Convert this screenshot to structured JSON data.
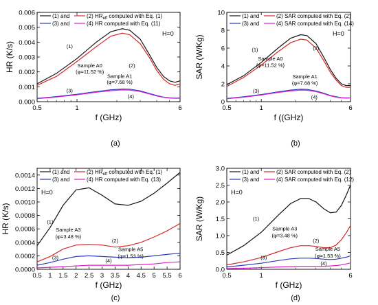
{
  "colors": {
    "s1": "#111111",
    "s2": "#d62728",
    "s3": "#2a3bbd",
    "s4": "#e020c8"
  },
  "chart_data": [
    {
      "type": "line",
      "panel_label": "(a)",
      "xlabel": "f (GHz)",
      "ylabel": "HR (K/s)",
      "xscale": "log",
      "xlim": [
        0.5,
        6
      ],
      "ylim": [
        0,
        0.006
      ],
      "xticks": [
        {
          "v": 0.5,
          "label": "0.5"
        },
        {
          "v": 1,
          "label": "1"
        },
        {
          "v": 6,
          "label": "6"
        }
      ],
      "yticks": [
        {
          "v": 0,
          "label": "0.000"
        },
        {
          "v": 0.001,
          "label": "0.001"
        },
        {
          "v": 0.002,
          "label": "0.002"
        },
        {
          "v": 0.003,
          "label": "0.003"
        },
        {
          "v": 0.004,
          "label": "0.004"
        },
        {
          "v": 0.005,
          "label": "0.005"
        },
        {
          "v": 0.006,
          "label": "0.006"
        }
      ],
      "legend": [
        {
          "line1": "(1) and",
          "line2": "(2) HR",
          "sub": "eff",
          "rest": " computed with Eq. (1)"
        },
        {
          "line1": "(3) and",
          "line2": "(4) HR computed with Eq. (11)",
          "sub": "",
          "rest": ""
        }
      ],
      "h_label": "H=0",
      "annotations": [
        {
          "text": "(1)",
          "x": 0.88,
          "y": 0.0036
        },
        {
          "text": "(2)",
          "x": 2.6,
          "y": 0.0023
        },
        {
          "text": "(3)",
          "x": 0.88,
          "y": 0.00062
        },
        {
          "text": "(4)",
          "x": 2.55,
          "y": 0.00022
        },
        {
          "text": "Sample A0",
          "x": 1.25,
          "y": 0.0023
        },
        {
          "text": "(φ=11.52 %)",
          "x": 1.25,
          "y": 0.0019
        },
        {
          "text": "Sample A1",
          "x": 2.1,
          "y": 0.0016
        },
        {
          "text": "(φ=7.68 %)",
          "x": 2.1,
          "y": 0.0012
        }
      ],
      "series": [
        {
          "key": "s1",
          "x": [
            0.5,
            0.7,
            1.0,
            1.4,
            1.8,
            2.2,
            2.5,
            3.0,
            3.5,
            4.0,
            4.5,
            5.0,
            5.5,
            6.0
          ],
          "y": [
            0.0012,
            0.0019,
            0.0029,
            0.004,
            0.0047,
            0.0049,
            0.0048,
            0.0042,
            0.0032,
            0.0023,
            0.0017,
            0.0014,
            0.0013,
            0.0014
          ]
        },
        {
          "key": "s2",
          "x": [
            0.5,
            0.7,
            1.0,
            1.4,
            1.8,
            2.2,
            2.5,
            3.0,
            3.5,
            4.0,
            4.5,
            5.0,
            5.5,
            6.0
          ],
          "y": [
            0.0011,
            0.0017,
            0.0027,
            0.0037,
            0.0044,
            0.0046,
            0.0045,
            0.0039,
            0.003,
            0.0021,
            0.0015,
            0.0012,
            0.0011,
            0.0012
          ]
        },
        {
          "key": "s3",
          "x": [
            0.5,
            0.7,
            1.0,
            1.4,
            1.8,
            2.2,
            2.5,
            3.0,
            3.5,
            4.0,
            4.5,
            5.0,
            5.5,
            6.0
          ],
          "y": [
            0.00022,
            0.00034,
            0.0005,
            0.00068,
            0.0008,
            0.00085,
            0.00084,
            0.00073,
            0.00056,
            0.00041,
            0.00031,
            0.00026,
            0.00024,
            0.00025
          ]
        },
        {
          "key": "s4",
          "x": [
            0.5,
            0.7,
            1.0,
            1.4,
            1.8,
            2.2,
            2.5,
            3.0,
            3.5,
            4.0,
            4.5,
            5.0,
            5.5,
            6.0
          ],
          "y": [
            0.0002,
            0.00031,
            0.00046,
            0.00063,
            0.00074,
            0.00079,
            0.00078,
            0.00068,
            0.00052,
            0.00038,
            0.00029,
            0.00024,
            0.00022,
            0.00023
          ]
        }
      ]
    },
    {
      "type": "line",
      "panel_label": "(b)",
      "xlabel": "f ((GHz)",
      "ylabel": "SAR (W/Kg)",
      "xscale": "log",
      "xlim": [
        0.5,
        6
      ],
      "ylim": [
        0,
        10
      ],
      "xticks": [
        {
          "v": 0.5,
          "label": "0.5"
        },
        {
          "v": 1,
          "label": "1"
        },
        {
          "v": 6,
          "label": "6"
        }
      ],
      "yticks": [
        {
          "v": 0,
          "label": "0"
        },
        {
          "v": 2,
          "label": "2"
        },
        {
          "v": 4,
          "label": "4"
        },
        {
          "v": 6,
          "label": "6"
        },
        {
          "v": 8,
          "label": "8"
        },
        {
          "v": 10,
          "label": "10"
        }
      ],
      "legend": [
        {
          "line1": "(1) and",
          "line2": "(2) SAR computed with Eq. (2)",
          "sub": "",
          "rest": ""
        },
        {
          "line1": "(3) and",
          "line2": "(4) SAR computed with Eq. (14)",
          "sub": "",
          "rest": ""
        }
      ],
      "h_label": "H=0",
      "annotations": [
        {
          "text": "(1)",
          "x": 0.88,
          "y": 5.6
        },
        {
          "text": "(2)",
          "x": 3.0,
          "y": 5.8
        },
        {
          "text": "(3)",
          "x": 0.9,
          "y": 1.0
        },
        {
          "text": "(4)",
          "x": 2.9,
          "y": 0.3
        },
        {
          "text": "Sample A0",
          "x": 1.2,
          "y": 4.6
        },
        {
          "text": "(φ=11.52 %)",
          "x": 1.2,
          "y": 3.9
        },
        {
          "text": "Sample A1",
          "x": 2.4,
          "y": 2.6
        },
        {
          "text": "(φ=7.68 %)",
          "x": 2.4,
          "y": 1.9
        }
      ],
      "series": [
        {
          "key": "s1",
          "x": [
            0.5,
            0.7,
            1.0,
            1.4,
            1.8,
            2.2,
            2.5,
            3.0,
            3.5,
            4.0,
            4.5,
            5.0,
            5.5,
            6.0
          ],
          "y": [
            1.9,
            2.9,
            4.4,
            6.0,
            7.1,
            7.5,
            7.4,
            6.5,
            5.0,
            3.6,
            2.6,
            2.0,
            1.8,
            1.8
          ]
        },
        {
          "key": "s2",
          "x": [
            0.5,
            0.7,
            1.0,
            1.4,
            1.8,
            2.2,
            2.5,
            3.0,
            3.5,
            4.0,
            4.5,
            5.0,
            5.5,
            6.0
          ],
          "y": [
            1.7,
            2.7,
            4.1,
            5.6,
            6.6,
            7.0,
            6.9,
            6.0,
            4.6,
            3.3,
            2.4,
            1.8,
            1.6,
            1.6
          ]
        },
        {
          "key": "s3",
          "x": [
            0.5,
            0.7,
            1.0,
            1.4,
            1.8,
            2.2,
            2.5,
            3.0,
            3.5,
            4.0,
            4.5,
            5.0,
            5.5,
            6.0
          ],
          "y": [
            0.35,
            0.55,
            0.8,
            1.1,
            1.3,
            1.4,
            1.38,
            1.2,
            0.95,
            0.7,
            0.55,
            0.45,
            0.42,
            0.43
          ]
        },
        {
          "key": "s4",
          "x": [
            0.5,
            0.7,
            1.0,
            1.4,
            1.8,
            2.2,
            2.5,
            3.0,
            3.5,
            4.0,
            4.5,
            5.0,
            5.5,
            6.0
          ],
          "y": [
            0.32,
            0.5,
            0.75,
            1.02,
            1.2,
            1.3,
            1.28,
            1.12,
            0.88,
            0.65,
            0.5,
            0.42,
            0.39,
            0.4
          ]
        }
      ]
    },
    {
      "type": "line",
      "panel_label": "(c)",
      "xlabel": "f (GHz)",
      "ylabel": "HR (K/s)",
      "xscale": "linear",
      "xlim": [
        0.5,
        6
      ],
      "ylim": [
        0,
        0.0015
      ],
      "xticks": [
        {
          "v": 0.5,
          "label": "0.5"
        },
        {
          "v": 1,
          "label": "1"
        },
        {
          "v": 1.5,
          "label": "1.5"
        },
        {
          "v": 2,
          "label": "2"
        },
        {
          "v": 2.5,
          "label": "2.5"
        },
        {
          "v": 3,
          "label": "3"
        },
        {
          "v": 3.5,
          "label": "3.5"
        },
        {
          "v": 4,
          "label": "4"
        },
        {
          "v": 4.5,
          "label": "4.5"
        },
        {
          "v": 5,
          "label": "5"
        },
        {
          "v": 5.5,
          "label": "5.5"
        },
        {
          "v": 6,
          "label": "6"
        }
      ],
      "yticks": [
        {
          "v": 0,
          "label": "0.0000"
        },
        {
          "v": 0.0002,
          "label": "0.0002"
        },
        {
          "v": 0.0004,
          "label": "0.0004"
        },
        {
          "v": 0.0006,
          "label": "0.0006"
        },
        {
          "v": 0.0008,
          "label": "0.0008"
        },
        {
          "v": 0.001,
          "label": "0.0010"
        },
        {
          "v": 0.0012,
          "label": "0.0012"
        },
        {
          "v": 0.0014,
          "label": "0.0014"
        }
      ],
      "legend": [
        {
          "line1": "(1) and",
          "line2": "(2) HR",
          "sub": "eff",
          "rest": " computed with Eq. (1)"
        },
        {
          "line1": "(3) and",
          "line2": "(4) HR computed with Eq. (13)",
          "sub": "",
          "rest": ""
        }
      ],
      "h_label": "H=0",
      "annotations": [
        {
          "text": "(1)",
          "x": 1.0,
          "y": 0.00068
        },
        {
          "text": "(2)",
          "x": 3.5,
          "y": 0.0004
        },
        {
          "text": "(3)",
          "x": 1.2,
          "y": 0.00015
        },
        {
          "text": "(4)",
          "x": 3.25,
          "y": 0.0001
        },
        {
          "text": "Sample A3",
          "x": 1.7,
          "y": 0.00056
        },
        {
          "text": "(φ=3.48 %)",
          "x": 1.7,
          "y": 0.00046
        },
        {
          "text": "Sample A5",
          "x": 4.1,
          "y": 0.00027
        },
        {
          "text": "(φ=1.53 %)",
          "x": 4.1,
          "y": 0.00017
        }
      ],
      "series": [
        {
          "key": "s1",
          "x": [
            0.5,
            1.0,
            1.5,
            2.0,
            2.5,
            3.0,
            3.5,
            4.0,
            4.5,
            5.0,
            5.5,
            6.0
          ],
          "y": [
            0.00035,
            0.00062,
            0.00095,
            0.00118,
            0.00121,
            0.0011,
            0.00097,
            0.00095,
            0.00101,
            0.00113,
            0.00128,
            0.00144
          ]
        },
        {
          "key": "s2",
          "x": [
            0.5,
            1.0,
            1.5,
            2.0,
            2.5,
            3.0,
            3.5,
            4.0,
            4.5,
            5.0,
            5.5,
            6.0
          ],
          "y": [
            0.00011,
            0.00019,
            0.0003,
            0.00036,
            0.00037,
            0.00036,
            0.00033,
            0.00035,
            0.0004,
            0.00048,
            0.00057,
            0.00068
          ]
        },
        {
          "key": "s3",
          "x": [
            0.5,
            1.0,
            1.5,
            2.0,
            2.5,
            3.0,
            3.5,
            4.0,
            4.5,
            5.0,
            5.5,
            6.0
          ],
          "y": [
            6e-05,
            0.0001,
            0.00015,
            0.00019,
            0.0002,
            0.00019,
            0.00018,
            0.00017,
            0.00018,
            0.0002,
            0.00022,
            0.00024
          ]
        },
        {
          "key": "s4",
          "x": [
            0.5,
            1.0,
            1.5,
            2.0,
            2.5,
            3.0,
            3.5,
            4.0,
            4.5,
            5.0,
            5.5,
            6.0
          ],
          "y": [
            2e-05,
            3e-05,
            4e-05,
            5e-05,
            6e-05,
            6e-05,
            6e-05,
            6e-05,
            7e-05,
            8e-05,
            0.0001,
            0.00011
          ]
        }
      ]
    },
    {
      "type": "line",
      "panel_label": "(d)",
      "xlabel": "f (GHz)",
      "ylabel": "SAR (W/Kg)",
      "xscale": "log",
      "xlim": [
        0.5,
        6
      ],
      "ylim": [
        0,
        3
      ],
      "xticks": [
        {
          "v": 0.5,
          "label": "0.5"
        },
        {
          "v": 1,
          "label": "1"
        },
        {
          "v": 6,
          "label": "6"
        }
      ],
      "yticks": [
        {
          "v": 0,
          "label": "0.0"
        },
        {
          "v": 0.5,
          "label": "0.5"
        },
        {
          "v": 1.0,
          "label": "1.0"
        },
        {
          "v": 1.5,
          "label": "1.5"
        },
        {
          "v": 2.0,
          "label": "2.0"
        },
        {
          "v": 2.5,
          "label": "2.5"
        },
        {
          "v": 3.0,
          "label": "3.0"
        }
      ],
      "legend": [
        {
          "line1": "(1) and",
          "line2": "(2) SAR computed with Eq. (2)",
          "sub": "",
          "rest": ""
        },
        {
          "line1": "(3) and",
          "line2": "(4) SAR computed with Eq. (12)",
          "sub": "",
          "rest": ""
        }
      ],
      "h_label": "H=0",
      "annotations": [
        {
          "text": "(1)",
          "x": 0.9,
          "y": 1.45
        },
        {
          "text": "(2)",
          "x": 3.0,
          "y": 0.8
        },
        {
          "text": "(3)",
          "x": 1.05,
          "y": 0.3
        },
        {
          "text": "(4)",
          "x": 3.5,
          "y": 0.12
        },
        {
          "text": "Sample A3",
          "x": 1.6,
          "y": 1.15
        },
        {
          "text": "(φ=3.48 %)",
          "x": 1.6,
          "y": 0.95
        },
        {
          "text": "Sample A5",
          "x": 3.8,
          "y": 0.55
        },
        {
          "text": "(φ=1.53 %)",
          "x": 3.8,
          "y": 0.35
        }
      ],
      "series": [
        {
          "key": "s1",
          "x": [
            0.5,
            0.7,
            1.0,
            1.4,
            1.8,
            2.2,
            2.6,
            3.0,
            3.5,
            4.0,
            4.5,
            5.0,
            5.5,
            6.0
          ],
          "y": [
            0.42,
            0.7,
            1.1,
            1.6,
            1.95,
            2.1,
            2.1,
            2.0,
            1.8,
            1.68,
            1.7,
            1.9,
            2.2,
            2.5
          ]
        },
        {
          "key": "s2",
          "x": [
            0.5,
            0.7,
            1.0,
            1.4,
            1.8,
            2.2,
            2.6,
            3.0,
            3.5,
            4.0,
            4.5,
            5.0,
            5.5,
            6.0
          ],
          "y": [
            0.13,
            0.22,
            0.35,
            0.52,
            0.64,
            0.7,
            0.7,
            0.68,
            0.64,
            0.64,
            0.72,
            0.88,
            1.08,
            1.3
          ]
        },
        {
          "key": "s3",
          "x": [
            0.5,
            0.7,
            1.0,
            1.4,
            1.8,
            2.2,
            2.6,
            3.0,
            3.5,
            4.0,
            4.5,
            5.0,
            5.5,
            6.0
          ],
          "y": [
            0.07,
            0.12,
            0.18,
            0.26,
            0.31,
            0.33,
            0.33,
            0.32,
            0.3,
            0.29,
            0.3,
            0.33,
            0.36,
            0.4
          ]
        },
        {
          "key": "s4",
          "x": [
            0.5,
            0.7,
            1.0,
            1.4,
            1.8,
            2.2,
            2.6,
            3.0,
            3.5,
            4.0,
            4.5,
            5.0,
            5.5,
            6.0
          ],
          "y": [
            0.02,
            0.03,
            0.05,
            0.07,
            0.08,
            0.09,
            0.09,
            0.09,
            0.09,
            0.1,
            0.11,
            0.13,
            0.16,
            0.19
          ]
        }
      ]
    }
  ]
}
